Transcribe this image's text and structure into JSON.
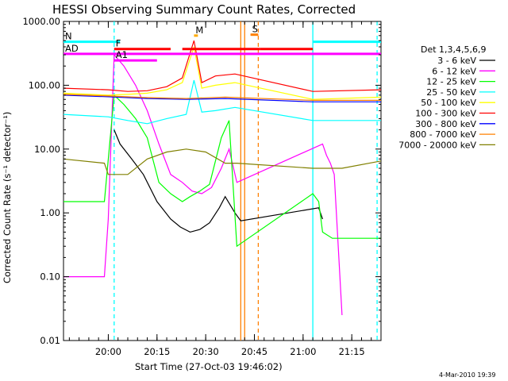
{
  "chart_data": {
    "type": "line",
    "title": "HESSI Observing Summary Count Rates, Corrected",
    "xlabel": "Start Time (27-Oct-03 19:46:02)",
    "ylabel": "Corrected Count Rate (s⁻¹ detector⁻¹)",
    "footer": "4-Mar-2010 19:39",
    "y_scale": "log",
    "ylim": [
      0.01,
      1000
    ],
    "xlim_minutes": [
      19.77,
      21.4
    ],
    "x_ticks": [
      {
        "t": 20.0,
        "label": "20:00"
      },
      {
        "t": 20.25,
        "label": "20:15"
      },
      {
        "t": 20.5,
        "label": "20:30"
      },
      {
        "t": 20.75,
        "label": "20:45"
      },
      {
        "t": 21.0,
        "label": "21:00"
      },
      {
        "t": 21.25,
        "label": "21:15"
      }
    ],
    "y_ticks": [
      {
        "v": 1000,
        "label": "1000.00"
      },
      {
        "v": 100,
        "label": "100.00"
      },
      {
        "v": 10,
        "label": "10.00"
      },
      {
        "v": 1,
        "label": "1.00"
      },
      {
        "v": 0.1,
        "label": "0.10"
      },
      {
        "v": 0.01,
        "label": "0.01"
      }
    ],
    "legend_title": "Det 1,3,4,5,6,9",
    "series": [
      {
        "name": "3 - 6 keV",
        "color": "#000000",
        "points": [
          [
            20.03,
            20
          ],
          [
            20.06,
            12
          ],
          [
            20.12,
            7
          ],
          [
            20.18,
            4
          ],
          [
            20.25,
            1.5
          ],
          [
            20.32,
            0.8
          ],
          [
            20.37,
            0.6
          ],
          [
            20.42,
            0.5
          ],
          [
            20.47,
            0.55
          ],
          [
            20.52,
            0.7
          ],
          [
            20.57,
            1.2
          ],
          [
            20.6,
            1.8
          ],
          [
            20.65,
            1.0
          ],
          [
            20.68,
            0.75
          ],
          [
            21.08,
            1.2
          ],
          [
            21.1,
            0.8
          ]
        ]
      },
      {
        "name": "6 - 12 keV",
        "color": "#ff00ff",
        "points": [
          [
            19.77,
            0.1
          ],
          [
            19.98,
            0.1
          ],
          [
            20.0,
            0.8
          ],
          [
            20.03,
            300
          ],
          [
            20.08,
            200
          ],
          [
            20.14,
            100
          ],
          [
            20.2,
            40
          ],
          [
            20.26,
            12
          ],
          [
            20.32,
            4
          ],
          [
            20.38,
            3
          ],
          [
            20.43,
            2.2
          ],
          [
            20.48,
            2
          ],
          [
            20.53,
            2.5
          ],
          [
            20.58,
            5
          ],
          [
            20.62,
            10
          ],
          [
            20.66,
            3
          ],
          [
            21.1,
            12
          ],
          [
            21.12,
            8
          ],
          [
            21.14,
            6
          ],
          [
            21.16,
            4
          ],
          [
            21.2,
            0.025
          ]
        ]
      },
      {
        "name": "12 - 25 keV",
        "color": "#00ff00",
        "points": [
          [
            19.77,
            1.5
          ],
          [
            19.98,
            1.5
          ],
          [
            20.03,
            70
          ],
          [
            20.08,
            50
          ],
          [
            20.14,
            30
          ],
          [
            20.2,
            15
          ],
          [
            20.26,
            3
          ],
          [
            20.32,
            2
          ],
          [
            20.38,
            1.5
          ],
          [
            20.42,
            1.8
          ],
          [
            20.47,
            2.2
          ],
          [
            20.52,
            2.8
          ],
          [
            20.58,
            15
          ],
          [
            20.62,
            28
          ],
          [
            20.66,
            0.3
          ],
          [
            21.05,
            2
          ],
          [
            21.08,
            1.5
          ],
          [
            21.1,
            0.5
          ],
          [
            21.15,
            0.4
          ],
          [
            21.4,
            0.4
          ]
        ]
      },
      {
        "name": "25 - 50 keV",
        "color": "#00ffff",
        "points": [
          [
            19.77,
            35
          ],
          [
            20.0,
            32
          ],
          [
            20.1,
            28
          ],
          [
            20.2,
            25
          ],
          [
            20.3,
            30
          ],
          [
            20.4,
            35
          ],
          [
            20.44,
            120
          ],
          [
            20.48,
            38
          ],
          [
            20.55,
            40
          ],
          [
            20.65,
            45
          ],
          [
            21.05,
            28
          ],
          [
            21.4,
            28
          ]
        ]
      },
      {
        "name": "50 - 100 keV",
        "color": "#ffff00",
        "points": [
          [
            19.77,
            75
          ],
          [
            20.0,
            70
          ],
          [
            20.1,
            72
          ],
          [
            20.2,
            75
          ],
          [
            20.3,
            85
          ],
          [
            20.38,
            110
          ],
          [
            20.44,
            400
          ],
          [
            20.48,
            90
          ],
          [
            20.55,
            100
          ],
          [
            20.65,
            110
          ],
          [
            21.05,
            60
          ],
          [
            21.4,
            65
          ]
        ]
      },
      {
        "name": "100 - 300 keV",
        "color": "#ff0000",
        "points": [
          [
            19.77,
            90
          ],
          [
            20.0,
            85
          ],
          [
            20.1,
            80
          ],
          [
            20.2,
            82
          ],
          [
            20.3,
            95
          ],
          [
            20.38,
            130
          ],
          [
            20.44,
            500
          ],
          [
            20.48,
            110
          ],
          [
            20.55,
            140
          ],
          [
            20.65,
            150
          ],
          [
            21.05,
            80
          ],
          [
            21.4,
            85
          ]
        ]
      },
      {
        "name": "300 - 800 keV",
        "color": "#0000ff",
        "points": [
          [
            19.77,
            70
          ],
          [
            20.0,
            66
          ],
          [
            20.2,
            62
          ],
          [
            20.4,
            60
          ],
          [
            20.6,
            62
          ],
          [
            21.05,
            55
          ],
          [
            21.4,
            55
          ]
        ]
      },
      {
        "name": "800 - 7000 keV",
        "color": "#ff8000",
        "points": [
          [
            19.77,
            72
          ],
          [
            20.0,
            68
          ],
          [
            20.2,
            64
          ],
          [
            20.4,
            62
          ],
          [
            20.6,
            65
          ],
          [
            21.05,
            58
          ],
          [
            21.4,
            58
          ]
        ]
      },
      {
        "name": "7000 - 20000 keV",
        "color": "#808000",
        "points": [
          [
            19.77,
            7
          ],
          [
            19.98,
            6
          ],
          [
            20.0,
            4
          ],
          [
            20.1,
            4
          ],
          [
            20.2,
            7
          ],
          [
            20.3,
            9
          ],
          [
            20.4,
            10
          ],
          [
            20.5,
            9
          ],
          [
            20.6,
            6
          ],
          [
            20.66,
            6
          ],
          [
            21.05,
            5
          ],
          [
            21.2,
            5
          ],
          [
            21.4,
            6.5
          ]
        ]
      }
    ],
    "flag_bars": [
      {
        "label": "N",
        "color": "#00ffff",
        "y": 480,
        "segments": [
          [
            19.77,
            20.06
          ],
          [
            21.05,
            21.4
          ]
        ]
      },
      {
        "label": "F",
        "color": "#ff0000",
        "y": 370,
        "segments": [
          [
            20.03,
            20.32
          ],
          [
            20.38,
            20.78
          ],
          [
            20.78,
            21.05
          ]
        ]
      },
      {
        "label": "AD",
        "color": "#ff00ff",
        "y": 310,
        "segments": [
          [
            19.77,
            21.4
          ]
        ]
      },
      {
        "label": "A1",
        "color": "#ff00ff",
        "y": 245,
        "segments": [
          [
            20.03,
            20.25
          ]
        ]
      },
      {
        "label": "M",
        "color": "#ffaa00",
        "y": 600,
        "segments": [
          [
            20.44,
            20.46
          ]
        ]
      },
      {
        "label": "S",
        "color": "#ff8000",
        "y": 620,
        "segments": [
          [
            20.73,
            20.77
          ]
        ]
      }
    ],
    "vertical_markers": [
      {
        "t": 20.03,
        "color": "#00ffff",
        "style": "dashed"
      },
      {
        "t": 20.68,
        "color": "#ff8000",
        "style": "solid"
      },
      {
        "t": 20.7,
        "color": "#ff8000",
        "style": "solid"
      },
      {
        "t": 20.77,
        "color": "#ff8000",
        "style": "dashed"
      },
      {
        "t": 21.05,
        "color": "#00ffff",
        "style": "solid"
      },
      {
        "t": 21.38,
        "color": "#00ffff",
        "style": "dashed"
      }
    ]
  }
}
